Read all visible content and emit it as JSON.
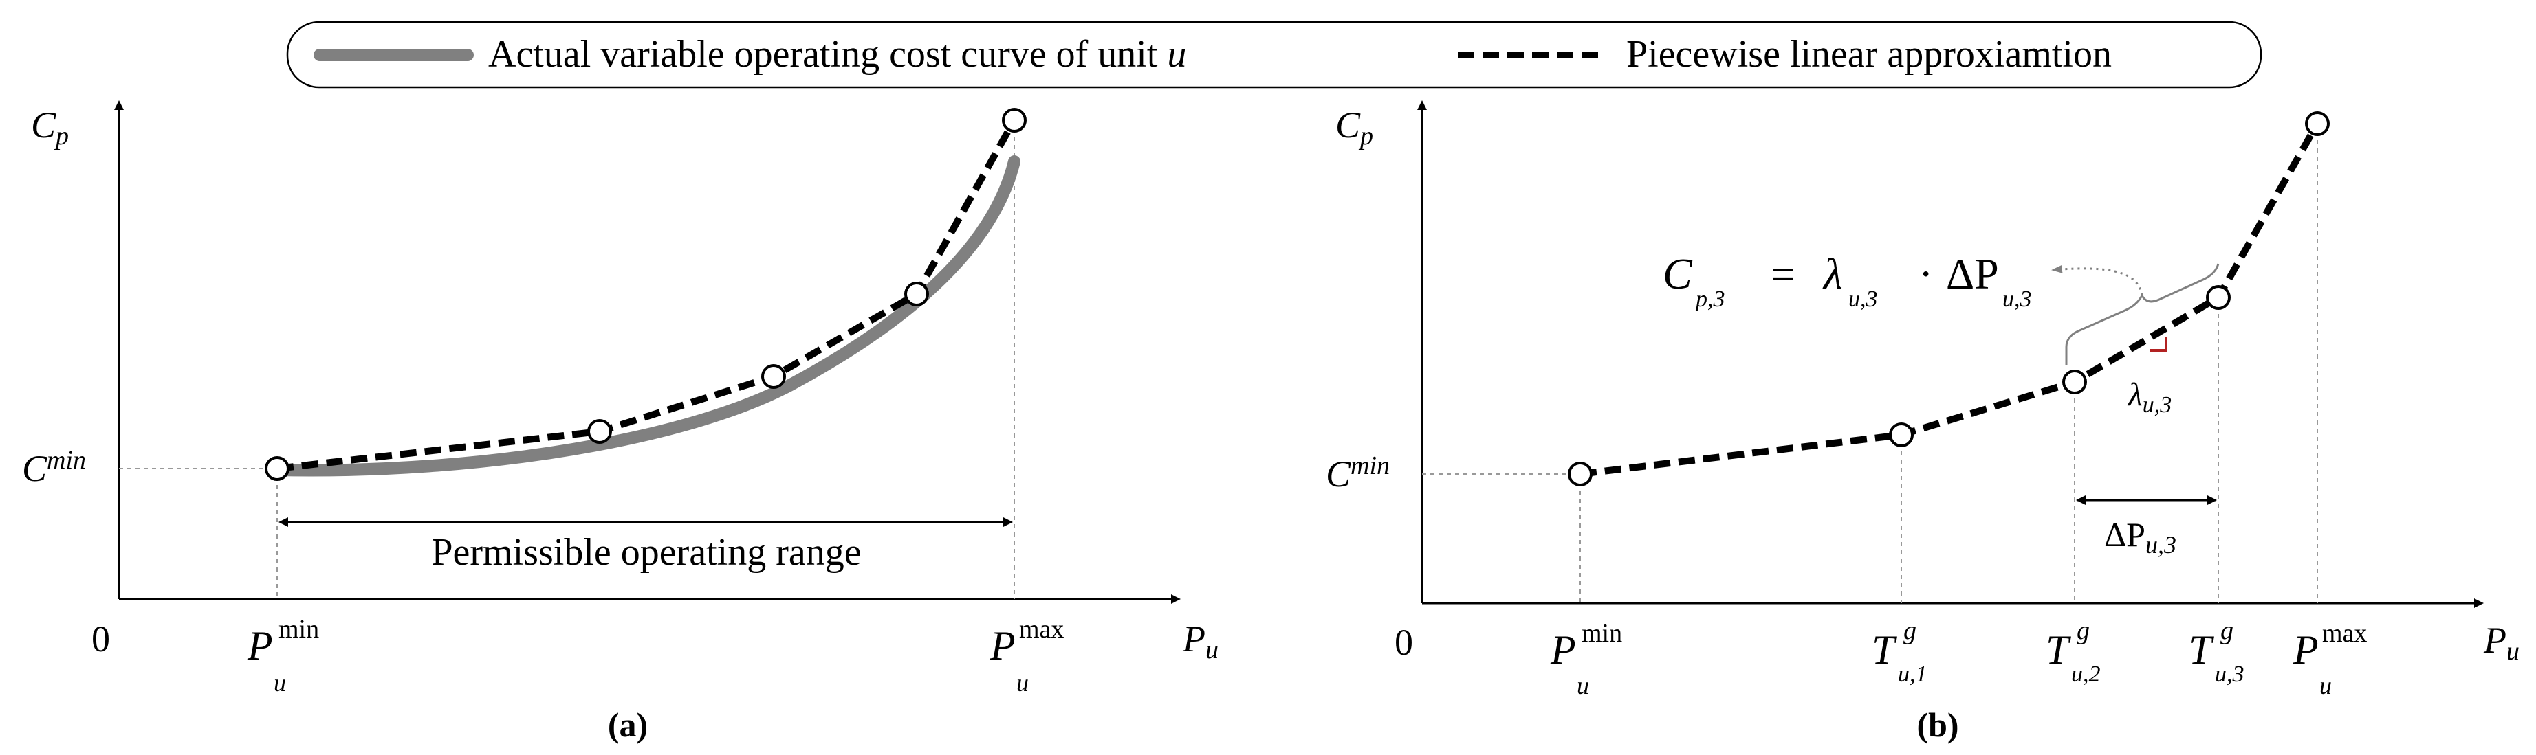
{
  "legend": {
    "actual_label": "Actual variable operating cost curve of unit ",
    "actual_unit": "u",
    "approx_label": "Piecewise linear approxiamtion"
  },
  "colors": {
    "actual_curve": "#808080",
    "approx_line": "#000000",
    "right_angle_marker": "#b22222",
    "guide_lines": "#999999"
  },
  "panel_a": {
    "caption": "(a)",
    "y_axis_label": "C",
    "y_axis_sub": "p",
    "x_axis_label": "P",
    "x_axis_sub": "u",
    "origin": "0",
    "cmin_main": "C",
    "cmin_sup": "min",
    "pmin_main": "P",
    "pmin_sup": "min",
    "pmin_sub": "u",
    "pmax_main": "P",
    "pmax_sup": "max",
    "pmax_sub": "u",
    "range_label": "Permissible operating range"
  },
  "panel_b": {
    "caption": "(b)",
    "y_axis_label": "C",
    "y_axis_sub": "p",
    "x_axis_label": "P",
    "x_axis_sub": "u",
    "origin": "0",
    "cmin_main": "C",
    "cmin_sup": "min",
    "pmin_main": "P",
    "pmin_sup": "min",
    "pmin_sub": "u",
    "pmax_main": "P",
    "pmax_sup": "max",
    "pmax_sub": "u",
    "t1_main": "T",
    "t1_sup": "g",
    "t1_sub": "u,1",
    "t2_main": "T",
    "t2_sup": "g",
    "t2_sub": "u,2",
    "t3_main": "T",
    "t3_sup": "g",
    "t3_sub": "u,3",
    "eq_c": "C",
    "eq_c_sub": "p,3",
    "eq_equals": "=",
    "eq_lambda": "λ",
    "eq_lambda_sub": "u,3",
    "eq_dot": "·",
    "eq_delta": "ΔP",
    "eq_delta_sub": "u,3",
    "slope_label": "λ",
    "slope_sub": "u,3",
    "delta_label": "ΔP",
    "delta_sub": "u,3"
  }
}
